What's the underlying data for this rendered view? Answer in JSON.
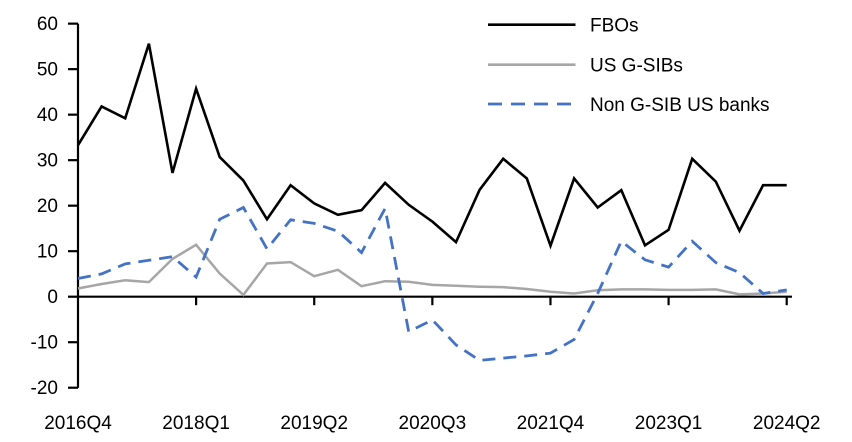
{
  "chart_data": {
    "type": "line",
    "title": "",
    "xlabel": "",
    "ylabel": "",
    "ylim": [
      -20,
      60
    ],
    "grid": false,
    "legend_position": "top-right",
    "y_ticks": [
      60,
      50,
      40,
      30,
      20,
      10,
      0,
      -10,
      -20
    ],
    "x_tick_labels": [
      "2016Q4",
      "2018Q1",
      "2019Q2",
      "2020Q3",
      "2021Q4",
      "2023Q1",
      "2024Q2"
    ],
    "x_tick_indices": [
      0,
      5,
      10,
      15,
      20,
      25,
      30
    ],
    "x_categories": [
      "2016Q4",
      "2017Q1",
      "2017Q2",
      "2017Q3",
      "2017Q4",
      "2018Q1",
      "2018Q2",
      "2018Q3",
      "2018Q4",
      "2019Q1",
      "2019Q2",
      "2019Q3",
      "2019Q4",
      "2020Q1",
      "2020Q2",
      "2020Q3",
      "2020Q4",
      "2021Q1",
      "2021Q2",
      "2021Q3",
      "2021Q4",
      "2022Q1",
      "2022Q2",
      "2022Q3",
      "2022Q4",
      "2023Q1",
      "2023Q2",
      "2023Q3",
      "2023Q4",
      "2024Q1",
      "2024Q2"
    ],
    "axis_color": "#000000",
    "series": [
      {
        "name": "FBOs",
        "color": "#000000",
        "style": "solid",
        "values": [
          33.3,
          41.8,
          39.2,
          55.6,
          27.2,
          45.7,
          30.7,
          25.5,
          17.0,
          24.5,
          20.5,
          18.0,
          19.0,
          25.0,
          20.2,
          16.5,
          12.0,
          23.5,
          30.3,
          26.0,
          11.2,
          26.0,
          19.6,
          23.4,
          11.3,
          14.7,
          30.3,
          25.3,
          14.5,
          24.5,
          24.5
        ]
      },
      {
        "name": "US G-SIBs",
        "color": "#A6A6A6",
        "style": "solid",
        "values": [
          1.8,
          2.8,
          3.6,
          3.2,
          8.3,
          11.4,
          5.1,
          0.4,
          7.3,
          7.6,
          4.5,
          5.9,
          2.3,
          3.4,
          3.3,
          2.6,
          2.4,
          2.2,
          2.1,
          1.7,
          1.1,
          0.7,
          1.4,
          1.6,
          1.6,
          1.5,
          1.5,
          1.6,
          0.5,
          0.7,
          1.1
        ]
      },
      {
        "name": "Non G-SIB US banks",
        "color": "#4472C4",
        "style": "dashed",
        "values": [
          4.0,
          5.0,
          7.2,
          8.0,
          8.8,
          4.3,
          17.0,
          19.6,
          10.5,
          16.9,
          16.1,
          14.4,
          9.7,
          19.4,
          -7.7,
          -5.1,
          -10.6,
          -14.0,
          -13.5,
          -13.0,
          -12.4,
          -9.4,
          0.7,
          12.2,
          8.1,
          6.5,
          12.2,
          7.5,
          5.3,
          0.7,
          1.5
        ]
      }
    ]
  }
}
